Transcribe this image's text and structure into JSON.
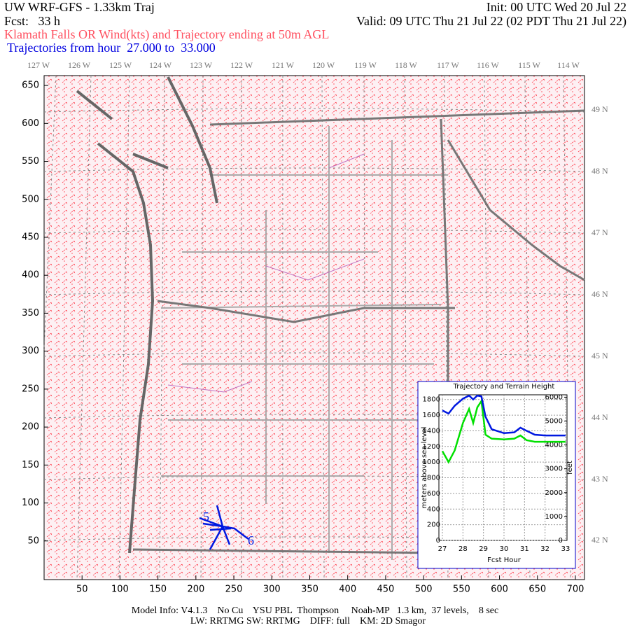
{
  "header": {
    "title": "UW WRF-GFS - 1.33km Traj",
    "init": "Init: 00 UTC Wed 20 Jul 22",
    "fcst": "Fcst:   33 h",
    "valid": "Valid: 09 UTC Thu 21 Jul 22 (02 PDT Thu 21 Jul 22)",
    "subtitle": "Klamath Falls OR Wind(kts) and Trajectory ending at 50m AGL",
    "trajectory_hours": "Trajectories from hour  27.000 to  33.000"
  },
  "map": {
    "xlim": [
      0,
      712
    ],
    "ylim": [
      0,
      663
    ],
    "xticks": [
      50,
      100,
      150,
      200,
      250,
      300,
      350,
      400,
      450,
      500,
      550,
      600,
      650,
      700
    ],
    "yticks": [
      50,
      100,
      150,
      200,
      250,
      300,
      350,
      400,
      450,
      500,
      550,
      600,
      650
    ],
    "longitudes": [
      "127 W",
      "126 W",
      "125 W",
      "124 W",
      "123 W",
      "122 W",
      "121 W",
      "120 W",
      "119 W",
      "118 W",
      "117 W",
      "116 W",
      "115 W",
      "114 W"
    ],
    "latitudes": [
      "49 N",
      "48 N",
      "47 N",
      "46 N",
      "45 N",
      "44 N",
      "43 N",
      "42 N"
    ],
    "trajectory_labels": [
      "5",
      "6"
    ]
  },
  "chart_data": {
    "type": "line",
    "title": "Trajectory and Terrain Height",
    "xlabel": "Fcst Hour",
    "ylabel": "meters above sea level",
    "y2label": "feet",
    "x": [
      27,
      27.3,
      27.6,
      28,
      28.3,
      28.5,
      28.7,
      28.9,
      29.1,
      29.4,
      30,
      30.5,
      30.8,
      31.1,
      31.5,
      32,
      33
    ],
    "xlim": [
      27,
      33
    ],
    "xticks": [
      27,
      28,
      29,
      30,
      31,
      32,
      33
    ],
    "ylim": [
      0,
      1860
    ],
    "yticks": [
      0,
      200,
      400,
      600,
      800,
      1000,
      1200,
      1400,
      1600,
      1800
    ],
    "y2lim": [
      0,
      6100
    ],
    "y2ticks": [
      0,
      1000,
      2000,
      3000,
      4000,
      5000,
      6000
    ],
    "grid": true,
    "series": [
      {
        "color": "#00e000",
        "values": [
          1140,
          1000,
          1150,
          1500,
          1680,
          1500,
          1700,
          1780,
          1350,
          1300,
          1290,
          1300,
          1340,
          1280,
          1260,
          1260,
          1260
        ]
      },
      {
        "color": "#0018e0",
        "values": [
          1660,
          1620,
          1720,
          1810,
          1850,
          1800,
          1850,
          1840,
          1580,
          1420,
          1370,
          1380,
          1440,
          1400,
          1350,
          1340,
          1340
        ]
      }
    ]
  },
  "footer": {
    "line1": "Model Info: V4.1.3    No Cu    YSU PBL  Thompson     Noah-MP   1.3 km,  37 levels,    8 sec",
    "line2": "LW: RRTMG SW: RRTMG    DIFF: full    KM: 2D Smagor"
  }
}
